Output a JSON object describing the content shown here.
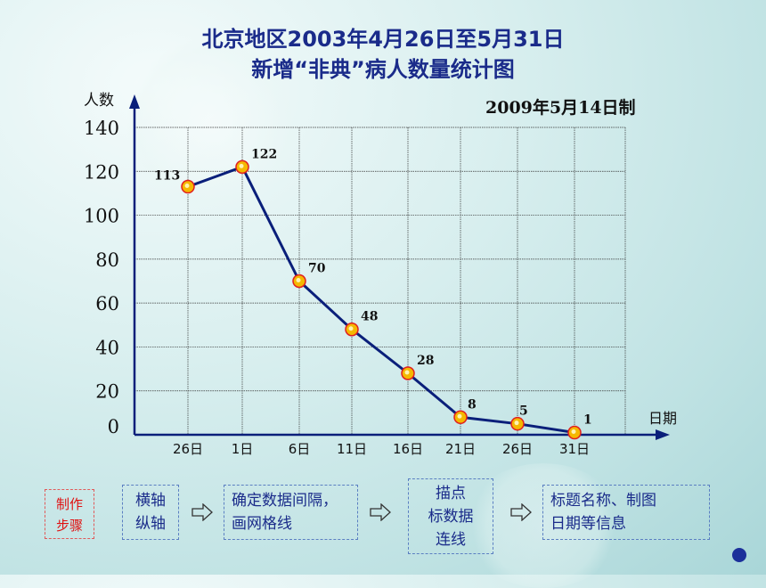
{
  "title_line1": "北京地区2003年4月26日至5月31日",
  "title_line2": "新增“非典”病人数量统计图",
  "made_on": "2009年5月14日制",
  "chart_data": {
    "type": "line",
    "title": "北京地区2003年4月26日至5月31日 新增“非典”病人数量统计图",
    "ylabel": "人数",
    "xlabel": "日期",
    "categories": [
      "26日",
      "1日",
      "6日",
      "11日",
      "16日",
      "21日",
      "26日",
      "31日"
    ],
    "values": [
      113,
      122,
      70,
      48,
      28,
      8,
      5,
      1
    ],
    "yticks": [
      0,
      20,
      40,
      60,
      80,
      100,
      120,
      140
    ],
    "ylim": [
      0,
      140
    ],
    "grid": true,
    "line_color": "#0a1f7a",
    "marker_color": "#f5b800"
  },
  "steps": {
    "title": "制作\n步骤",
    "items": [
      "横轴\n纵轴",
      "确定数据间隔，\n画网格线",
      "描点\n标数据\n连线",
      "标题名称、制图\n日期等信息"
    ],
    "arrow_icon": "hollow-right-arrow-icon"
  }
}
